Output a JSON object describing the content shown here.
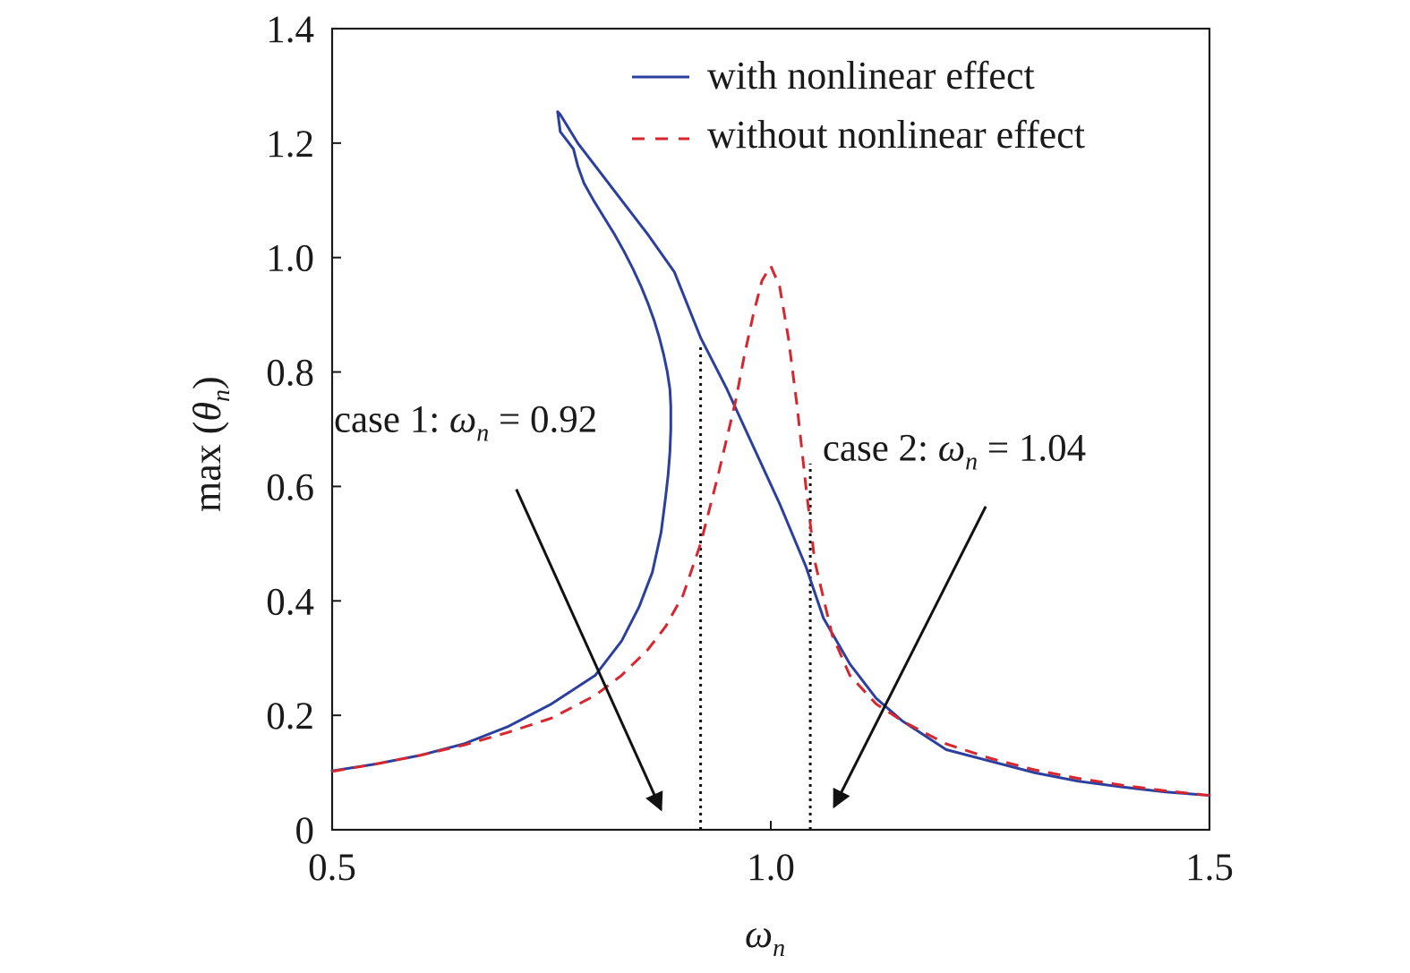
{
  "chart_data": {
    "type": "line",
    "xlabel": "ω",
    "xlabel_sub": "n",
    "ylabel_prefix": "max (",
    "ylabel_var": "θ",
    "ylabel_sub": "n",
    "ylabel_suffix": ")",
    "xlim": [
      0.5,
      1.5
    ],
    "ylim": [
      0,
      1.4
    ],
    "xticks": [
      0.5,
      1.0,
      1.5
    ],
    "xtick_labels": [
      "0.5",
      "1.0",
      "1.5"
    ],
    "yticks": [
      0,
      0.2,
      0.4,
      0.6,
      0.8,
      1.0,
      1.2,
      1.4
    ],
    "ytick_labels": [
      "0",
      "0.2",
      "0.4",
      "0.6",
      "0.8",
      "1.0",
      "1.2",
      "1.4"
    ],
    "grid": false,
    "legend_position": "top-right",
    "series": [
      {
        "name": "with nonlinear effect",
        "color": "#2b3f9e",
        "style": "solid",
        "x": [
          0.5,
          0.55,
          0.6,
          0.65,
          0.7,
          0.75,
          0.8,
          0.83,
          0.85,
          0.865,
          0.875,
          0.88,
          0.883,
          0.885,
          0.886,
          0.886,
          0.885,
          0.882,
          0.878,
          0.873,
          0.867,
          0.86,
          0.852,
          0.843,
          0.833,
          0.822,
          0.81,
          0.798,
          0.787,
          0.78,
          0.775,
          0.76,
          0.757,
          0.76,
          0.78,
          0.8,
          0.83,
          0.86,
          0.89,
          0.92,
          0.95,
          0.98,
          1.01,
          1.04,
          1.06,
          1.09,
          1.12,
          1.15,
          1.2,
          1.25,
          1.3,
          1.35,
          1.4,
          1.45,
          1.5
        ],
        "y": [
          0.103,
          0.115,
          0.13,
          0.15,
          0.18,
          0.22,
          0.27,
          0.33,
          0.39,
          0.45,
          0.52,
          0.58,
          0.62,
          0.66,
          0.7,
          0.74,
          0.77,
          0.8,
          0.83,
          0.86,
          0.89,
          0.92,
          0.95,
          0.98,
          1.01,
          1.04,
          1.07,
          1.1,
          1.13,
          1.16,
          1.19,
          1.22,
          1.255,
          1.25,
          1.2,
          1.16,
          1.1,
          1.04,
          0.975,
          0.86,
          0.77,
          0.67,
          0.57,
          0.46,
          0.37,
          0.29,
          0.23,
          0.19,
          0.14,
          0.12,
          0.1,
          0.085,
          0.075,
          0.066,
          0.06
        ]
      },
      {
        "name": "without nonlinear effect",
        "color": "#d7262e",
        "style": "dashed",
        "x": [
          0.5,
          0.55,
          0.6,
          0.65,
          0.7,
          0.75,
          0.8,
          0.83,
          0.86,
          0.88,
          0.9,
          0.92,
          0.94,
          0.96,
          0.97,
          0.98,
          0.99,
          1.0,
          1.01,
          1.02,
          1.03,
          1.04,
          1.05,
          1.07,
          1.09,
          1.12,
          1.15,
          1.2,
          1.25,
          1.3,
          1.35,
          1.4,
          1.45,
          1.5
        ],
        "y": [
          0.102,
          0.115,
          0.13,
          0.148,
          0.17,
          0.195,
          0.235,
          0.27,
          0.315,
          0.355,
          0.41,
          0.5,
          0.62,
          0.75,
          0.83,
          0.9,
          0.96,
          0.985,
          0.95,
          0.86,
          0.74,
          0.6,
          0.47,
          0.34,
          0.27,
          0.22,
          0.19,
          0.15,
          0.125,
          0.105,
          0.09,
          0.078,
          0.068,
          0.06
        ]
      }
    ],
    "vlines": [
      {
        "x": 0.92,
        "y_top": 0.85
      },
      {
        "x": 1.045,
        "y_top": 0.64
      }
    ],
    "annotations": [
      {
        "prefix": "case 1: ",
        "var": "ω",
        "sub": "n",
        "suffix": " = 0.92",
        "x": 0.502,
        "y": 0.695,
        "arrow_from": [
          0.71,
          0.595
        ],
        "arrow_to": [
          0.875,
          0.035
        ]
      },
      {
        "prefix": "case 2: ",
        "var": "ω",
        "sub": "n",
        "suffix": " = 1.04",
        "x": 1.059,
        "y": 0.645,
        "arrow_from": [
          1.245,
          0.565
        ],
        "arrow_to": [
          1.072,
          0.04
        ]
      }
    ]
  }
}
